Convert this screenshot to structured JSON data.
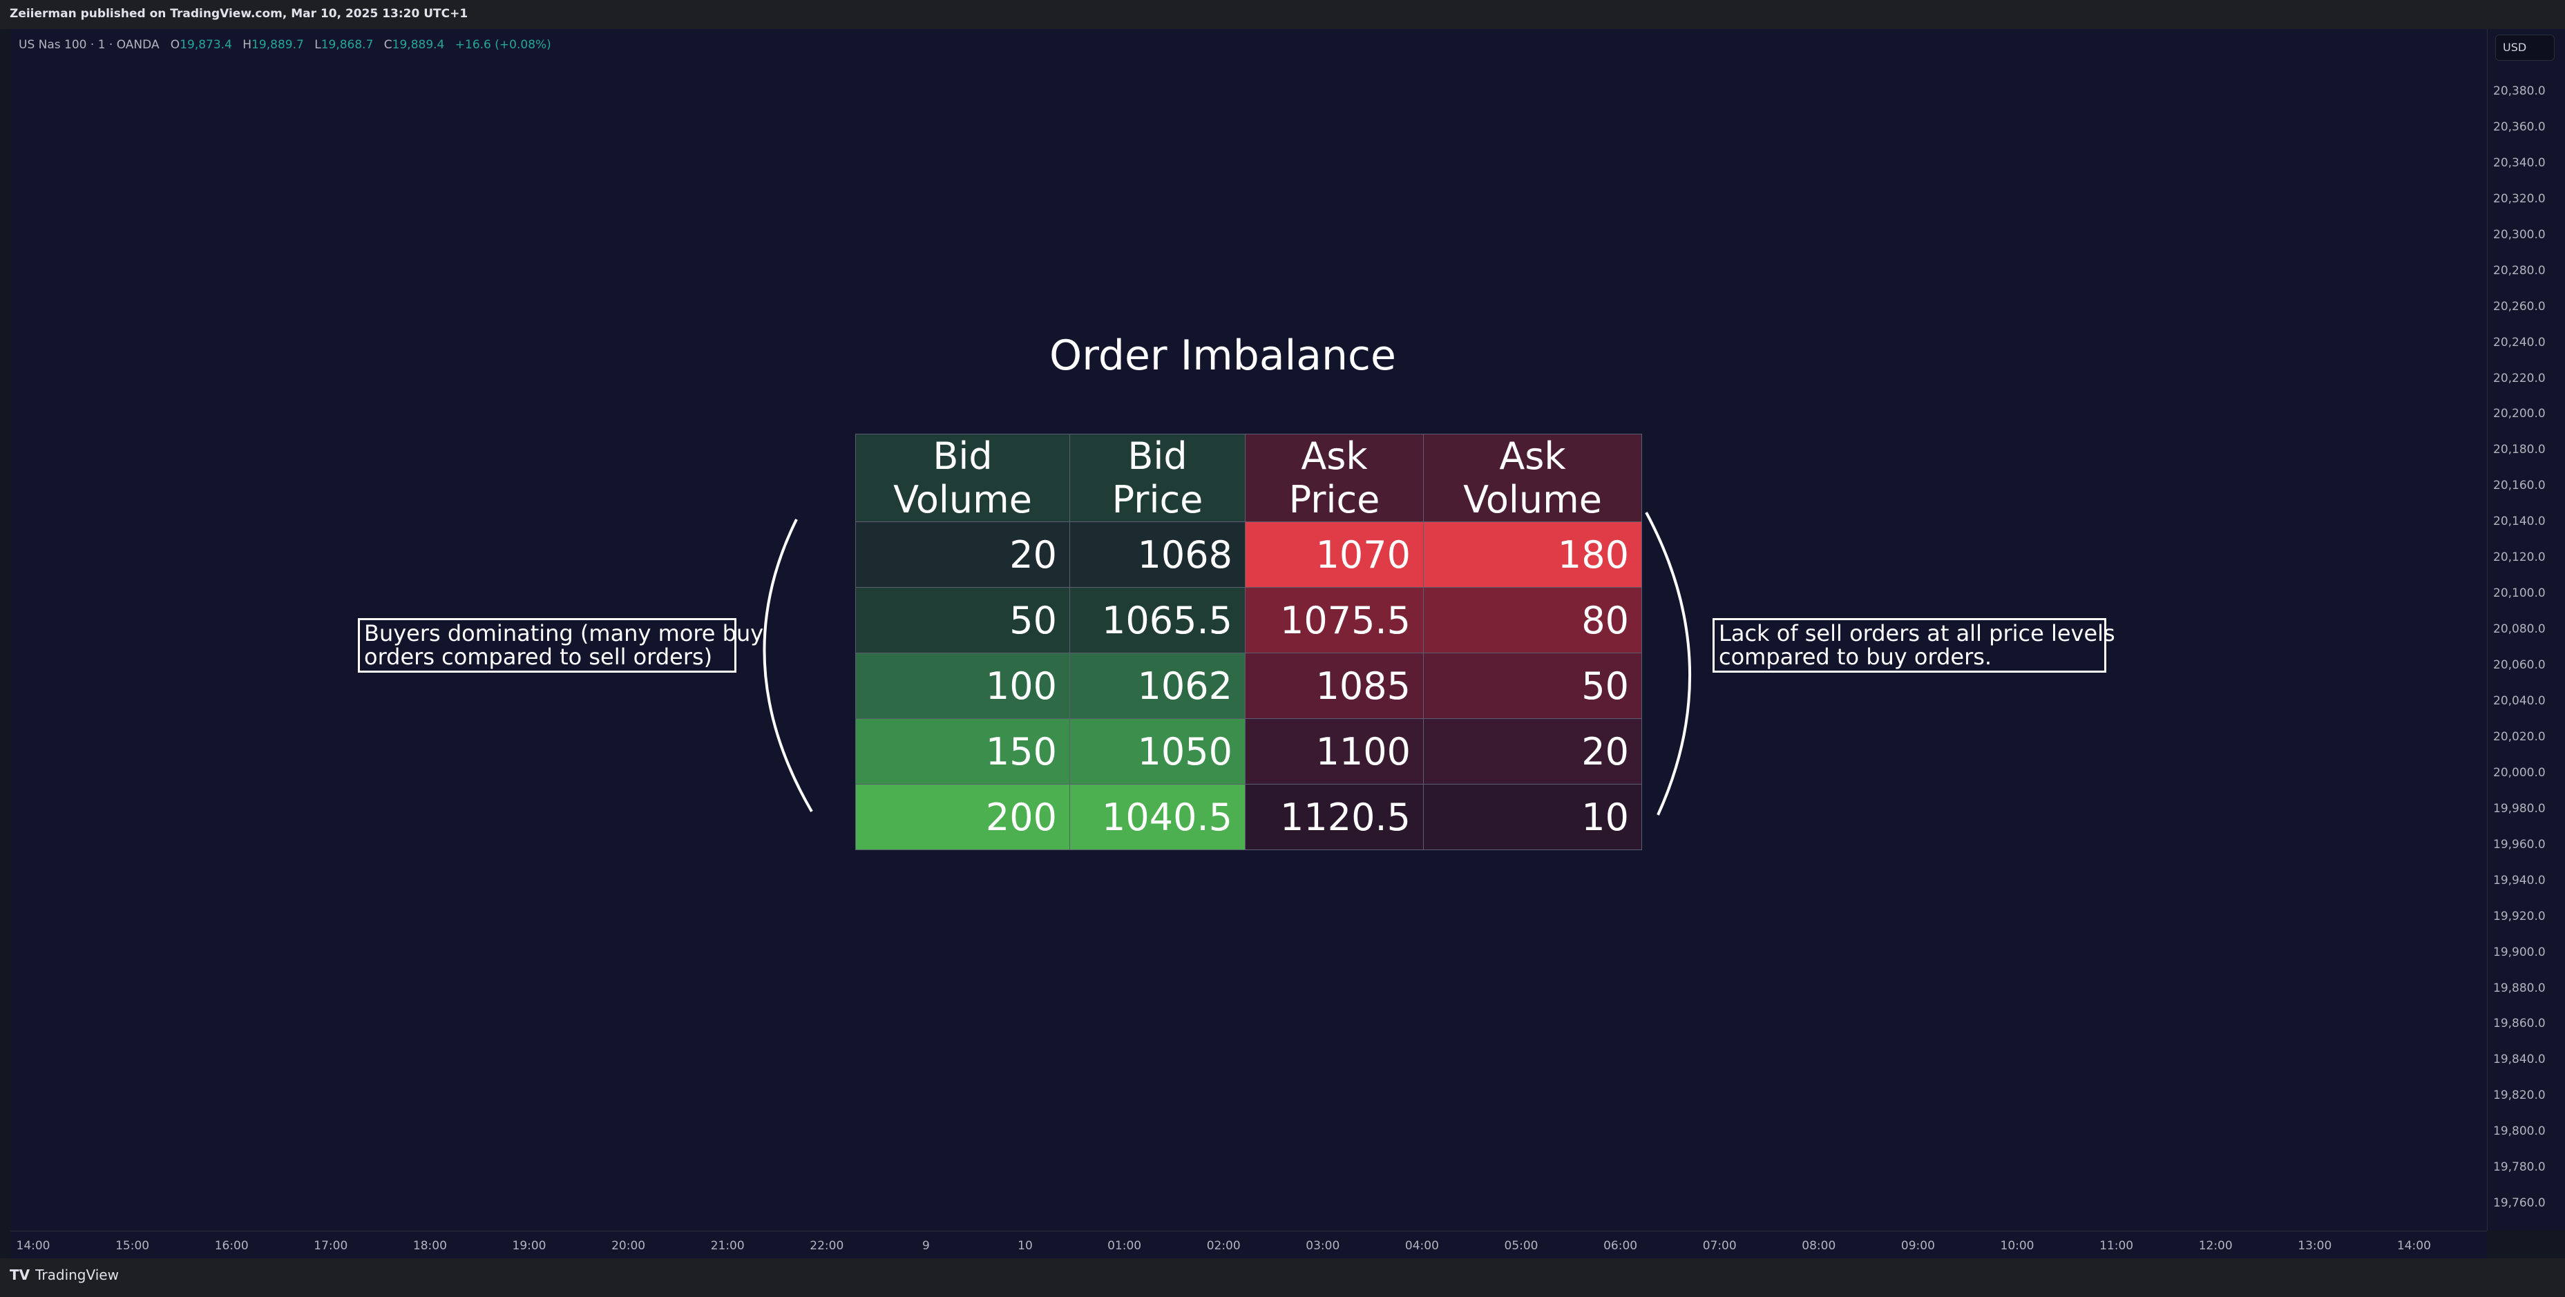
{
  "header": {
    "published": "Zeiierman published on TradingView.com, Mar 10, 2025 13:20 UTC+1"
  },
  "symbol": {
    "name": "US Nas 100 · 1 · OANDA",
    "open_label": "O",
    "open": "19,873.4",
    "high_label": "H",
    "high": "19,889.7",
    "low_label": "L",
    "low": "19,868.7",
    "close_label": "C",
    "close": "19,889.4",
    "change": "+16.6 (+0.08%)"
  },
  "price_axis": {
    "currency": "USD",
    "ticks": [
      "20,380.0",
      "20,360.0",
      "20,340.0",
      "20,320.0",
      "20,300.0",
      "20,280.0",
      "20,260.0",
      "20,240.0",
      "20,220.0",
      "20,200.0",
      "20,180.0",
      "20,160.0",
      "20,140.0",
      "20,120.0",
      "20,100.0",
      "20,080.0",
      "20,060.0",
      "20,040.0",
      "20,020.0",
      "20,000.0",
      "19,980.0",
      "19,960.0",
      "19,940.0",
      "19,920.0",
      "19,900.0",
      "19,880.0",
      "19,860.0",
      "19,840.0",
      "19,820.0",
      "19,800.0",
      "19,780.0",
      "19,760.0"
    ]
  },
  "time_axis": {
    "ticks": [
      "14:00",
      "15:00",
      "16:00",
      "17:00",
      "18:00",
      "19:00",
      "20:00",
      "21:00",
      "22:00",
      "9",
      "10",
      "01:00",
      "02:00",
      "03:00",
      "04:00",
      "05:00",
      "06:00",
      "07:00",
      "08:00",
      "09:00",
      "10:00",
      "11:00",
      "12:00",
      "13:00",
      "14:00"
    ]
  },
  "drawing": {
    "title": "Order Imbalance",
    "table": {
      "headers": [
        "Bid Volume",
        "Bid Price",
        "Ask Price",
        "Ask Volume"
      ],
      "rows": [
        [
          "20",
          "1068",
          "1070",
          "180"
        ],
        [
          "50",
          "1065.5",
          "1075.5",
          "80"
        ],
        [
          "100",
          "1062",
          "1085",
          "50"
        ],
        [
          "150",
          "1050",
          "1100",
          "20"
        ],
        [
          "200",
          "1040.5",
          "1120.5",
          "10"
        ]
      ],
      "bid_colors": [
        "#1c2b2f",
        "#203d35",
        "#2e6a45",
        "#3c8e4c",
        "#4caf50"
      ],
      "ask_colors": [
        "#e03c47",
        "#7c2237",
        "#5a1d33",
        "#3a1a30",
        "#2a172b"
      ]
    },
    "notes": {
      "buyers_line1": "Buyers dominating (many more buy",
      "buyers_line2": "orders compared to sell orders)",
      "sellers_line1": "Lack of sell orders at all price levels",
      "sellers_line2": "compared to buy orders."
    }
  },
  "footer": {
    "brand": "TradingView"
  }
}
